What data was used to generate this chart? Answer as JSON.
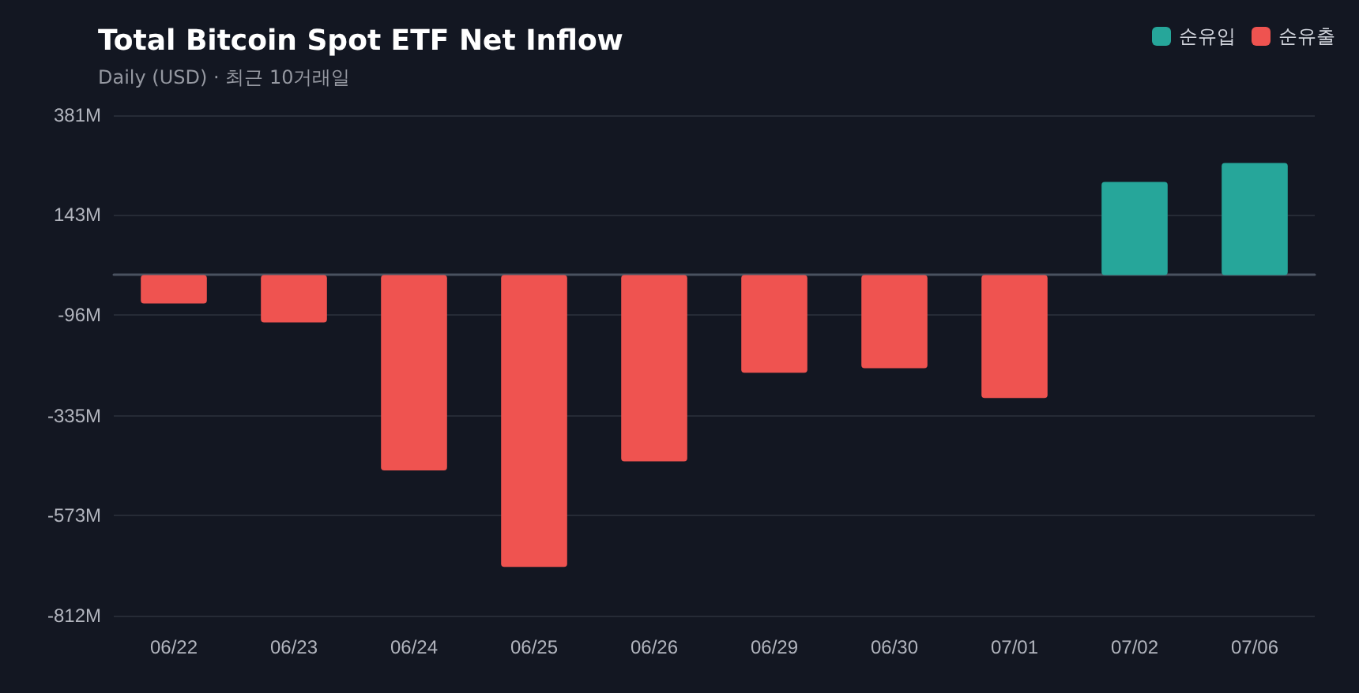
{
  "chart_data": {
    "type": "bar",
    "title": "Total Bitcoin Spot ETF Net Inflow",
    "subtitle": "Daily (USD) · 최근 10거래일",
    "categories": [
      "06/22",
      "06/23",
      "06/24",
      "06/25",
      "06/26",
      "06/29",
      "06/30",
      "07/01",
      "07/02",
      "07/06"
    ],
    "stacked": true,
    "series": [
      {
        "name": "순유입",
        "color": "#26a69a",
        "values": [
          null,
          null,
          null,
          null,
          null,
          null,
          null,
          null,
          222,
          267
        ]
      },
      {
        "name": "순유출",
        "color": "#ef5350",
        "values": [
          -68,
          -113,
          -466,
          -696,
          -444,
          -233,
          -222,
          -293,
          null,
          null
        ]
      }
    ],
    "ylim": [
      -812,
      381
    ],
    "yticks": [
      {
        "value": 381,
        "label": "381M"
      },
      {
        "value": 143,
        "label": "143M"
      },
      {
        "value": -96,
        "label": "-96M"
      },
      {
        "value": -335,
        "label": "-335M"
      },
      {
        "value": -573,
        "label": "-573M"
      },
      {
        "value": -812,
        "label": "-812M"
      }
    ],
    "grid": "y",
    "legend": "top right"
  }
}
